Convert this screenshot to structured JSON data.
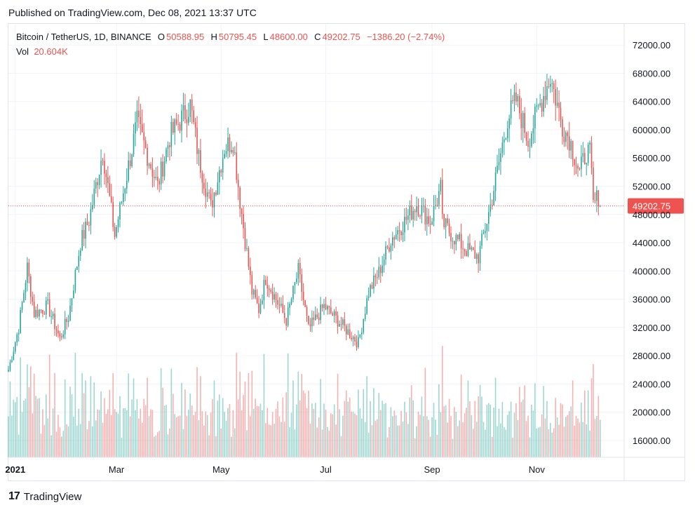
{
  "header": {
    "published": "Published on TradingView.com, Dec 08, 2021 13:37 UTC"
  },
  "legend": {
    "symbol": "Bitcoin / TetherUS, 1D, BINANCE",
    "o_label": "O",
    "o": "50588.95",
    "h_label": "H",
    "h": "50795.45",
    "l_label": "L",
    "l": "48600.00",
    "c_label": "C",
    "c": "49202.75",
    "change": "−1386.20 (−2.74%)",
    "vol_label": "Vol",
    "vol": "20.604K"
  },
  "footer": {
    "brand": "TradingView",
    "logo_glyph": "17"
  },
  "colors": {
    "up": "#26a69a",
    "down": "#ef5350",
    "grid": "#f0f3fa",
    "axis_text": "#131722"
  },
  "chart_data": {
    "type": "candlestick",
    "title": "Bitcoin / TetherUS, 1D, BINANCE",
    "y_axis": {
      "ticks": [
        16000,
        20000,
        24000,
        28000,
        32000,
        36000,
        40000,
        44000,
        48000,
        52000,
        56000,
        60000,
        64000,
        68000,
        72000
      ],
      "tick_labels": [
        "16000.00",
        "20000.00",
        "24000.00",
        "28000.00",
        "32000.00",
        "36000.00",
        "40000.00",
        "44000.00",
        "48000.00",
        "52000.00",
        "56000.00",
        "60000.00",
        "64000.00",
        "68000.00",
        "72000.00"
      ],
      "range": [
        13600,
        75000
      ],
      "position": "right"
    },
    "x_axis": {
      "labels": [
        "2021",
        "Mar",
        "May",
        "Jul",
        "Sep",
        "Nov"
      ],
      "label_dates": [
        "2021-01-01",
        "2021-03-01",
        "2021-05-01",
        "2021-07-01",
        "2021-09-01",
        "2021-11-01"
      ],
      "range": [
        "2020-12-28",
        "2021-12-22"
      ]
    },
    "last_price": {
      "value": 49202.75,
      "label": "49202.75"
    },
    "grid": true,
    "close_keypoints": [
      [
        "2020-12-28",
        26000
      ],
      [
        "2021-01-03",
        32000
      ],
      [
        "2021-01-08",
        40500
      ],
      [
        "2021-01-12",
        34000
      ],
      [
        "2021-01-20",
        35000
      ],
      [
        "2021-01-27",
        30400
      ],
      [
        "2021-02-01",
        33500
      ],
      [
        "2021-02-08",
        44000
      ],
      [
        "2021-02-13",
        47200
      ],
      [
        "2021-02-21",
        57000
      ],
      [
        "2021-02-28",
        45000
      ],
      [
        "2021-03-13",
        61000
      ],
      [
        "2021-03-25",
        52000
      ],
      [
        "2021-04-01",
        59000
      ],
      [
        "2021-04-13",
        63500
      ],
      [
        "2021-04-18",
        56000
      ],
      [
        "2021-04-25",
        49000
      ],
      [
        "2021-05-03",
        57500
      ],
      [
        "2021-05-08",
        58500
      ],
      [
        "2021-05-12",
        50000
      ],
      [
        "2021-05-19",
        37000
      ],
      [
        "2021-05-23",
        34500
      ],
      [
        "2021-05-27",
        39000
      ],
      [
        "2021-06-08",
        33000
      ],
      [
        "2021-06-15",
        40000
      ],
      [
        "2021-06-21",
        31700
      ],
      [
        "2021-06-30",
        35000
      ],
      [
        "2021-07-08",
        33000
      ],
      [
        "2021-07-20",
        29800
      ],
      [
        "2021-07-26",
        37000
      ],
      [
        "2021-08-01",
        39800
      ],
      [
        "2021-08-08",
        44500
      ],
      [
        "2021-08-16",
        47000
      ],
      [
        "2021-08-23",
        49500
      ],
      [
        "2021-08-31",
        47000
      ],
      [
        "2021-09-06",
        51700
      ],
      [
        "2021-09-07",
        46800
      ],
      [
        "2021-09-13",
        45000
      ],
      [
        "2021-09-21",
        43000
      ],
      [
        "2021-09-28",
        42000
      ],
      [
        "2021-10-05",
        49200
      ],
      [
        "2021-10-15",
        61500
      ],
      [
        "2021-10-20",
        64200
      ],
      [
        "2021-10-27",
        58500
      ],
      [
        "2021-11-02",
        63000
      ],
      [
        "2021-11-09",
        67500
      ],
      [
        "2021-11-16",
        60500
      ],
      [
        "2021-11-20",
        58800
      ],
      [
        "2021-11-26",
        53900
      ],
      [
        "2021-11-30",
        57000
      ],
      [
        "2021-12-02",
        56500
      ],
      [
        "2021-12-03",
        53500
      ],
      [
        "2021-12-04",
        49300
      ],
      [
        "2021-12-07",
        50600
      ],
      [
        "2021-12-08",
        49202.75
      ]
    ],
    "volume_axis_range": [
      0,
      30
    ]
  }
}
